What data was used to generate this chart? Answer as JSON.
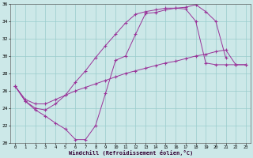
{
  "xlabel": "Windchill (Refroidissement éolien,°C)",
  "bg_color": "#cce8e8",
  "grid_color": "#99cccc",
  "line_color": "#993399",
  "xlim": [
    -0.5,
    23.5
  ],
  "ylim": [
    20,
    36
  ],
  "xticks": [
    0,
    1,
    2,
    3,
    4,
    5,
    6,
    7,
    8,
    9,
    10,
    11,
    12,
    13,
    14,
    15,
    16,
    17,
    18,
    19,
    20,
    21,
    22,
    23
  ],
  "yticks": [
    20,
    22,
    24,
    26,
    28,
    30,
    32,
    34,
    36
  ],
  "curves": [
    {
      "x": [
        0,
        1,
        2,
        3,
        4,
        5,
        6,
        7,
        8,
        9,
        10,
        11,
        12,
        13,
        14,
        15,
        16,
        17,
        18,
        19,
        20,
        21
      ],
      "y": [
        26.5,
        24.8,
        23.8,
        23.1,
        22.3,
        21.6,
        20.4,
        20.4,
        22.0,
        25.7,
        29.5,
        30.0,
        32.5,
        34.9,
        35.0,
        35.3,
        35.5,
        35.6,
        35.9,
        35.1,
        34.0,
        29.8
      ]
    },
    {
      "x": [
        0,
        1,
        2,
        3,
        4,
        5,
        6,
        7,
        8,
        9,
        10,
        11,
        12,
        13,
        14,
        15,
        16,
        17,
        18,
        19,
        20,
        21,
        22,
        23
      ],
      "y": [
        26.5,
        24.8,
        24.0,
        23.8,
        24.5,
        25.5,
        27.0,
        28.3,
        29.8,
        31.2,
        32.5,
        33.8,
        34.8,
        35.1,
        35.3,
        35.5,
        35.5,
        35.4,
        34.0,
        29.2,
        29.0,
        29.0,
        29.0,
        29.0
      ]
    },
    {
      "x": [
        0,
        1,
        2,
        3,
        4,
        5,
        6,
        7,
        8,
        9,
        10,
        11,
        12,
        13,
        14,
        15,
        16,
        17,
        18,
        19,
        20,
        21,
        22,
        23
      ],
      "y": [
        26.5,
        25.0,
        24.5,
        24.5,
        25.0,
        25.5,
        26.0,
        26.4,
        26.8,
        27.2,
        27.6,
        28.0,
        28.3,
        28.6,
        28.9,
        29.2,
        29.4,
        29.7,
        30.0,
        30.2,
        30.5,
        30.7,
        29.0,
        29.0
      ]
    }
  ]
}
